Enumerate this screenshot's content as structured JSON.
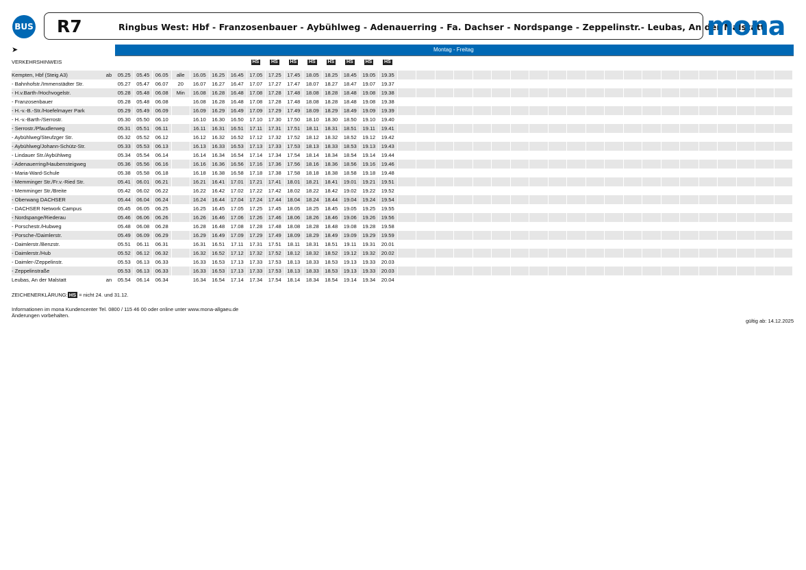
{
  "header": {
    "bus_badge": "BUS",
    "route": "R7",
    "title": "Ringbus West: Hbf - Franzosenbauer - Aybühlweg - Adenauerring - Fa. Dachser - Nordspange - Zeppelinstr.- Leubas, An der Malstatt",
    "logo": "mona",
    "brand_color": "#0068b4"
  },
  "direction_icon": "arrow-right-icon",
  "day_band": "Montag - Freitag",
  "traffic_note_label": "VERKEHRSHINWEIS",
  "hs_label": "HS",
  "hs_columns": [
    7,
    8,
    9,
    10,
    11,
    12,
    13,
    14
  ],
  "empty_columns": 21,
  "rows": [
    {
      "stop": "Kempten, Hbf (Steig A3)",
      "mark": "ab",
      "times": [
        "05.25",
        "05.45",
        "06.05",
        "alle",
        "16.05",
        "16.25",
        "16.45",
        "17.05",
        "17.25",
        "17.45",
        "18.05",
        "18.25",
        "18.45",
        "19.05",
        "19.35"
      ]
    },
    {
      "stop": "- Bahnhofstr./Immenstädter Str.",
      "mark": "",
      "times": [
        "05.27",
        "05.47",
        "06.07",
        "20",
        "16.07",
        "16.27",
        "16.47",
        "17.07",
        "17.27",
        "17.47",
        "18.07",
        "18.27",
        "18.47",
        "19.07",
        "19.37"
      ]
    },
    {
      "stop": "- H.v.Barth-/Hochvogelstr.",
      "mark": "",
      "times": [
        "05.28",
        "05.48",
        "06.08",
        "Min",
        "16.08",
        "16.28",
        "16.48",
        "17.08",
        "17.28",
        "17.48",
        "18.08",
        "18.28",
        "18.48",
        "19.08",
        "19.38"
      ]
    },
    {
      "stop": "- Franzosenbauer",
      "mark": "",
      "times": [
        "05.28",
        "05.48",
        "06.08",
        "",
        "16.08",
        "16.28",
        "16.48",
        "17.08",
        "17.28",
        "17.48",
        "18.08",
        "18.28",
        "18.48",
        "19.08",
        "19.38"
      ]
    },
    {
      "stop": "- H.-v.-B.-Str./Hoefelmayer Park",
      "mark": "",
      "times": [
        "05.29",
        "05.49",
        "06.09",
        "",
        "16.09",
        "16.29",
        "16.49",
        "17.09",
        "17.29",
        "17.49",
        "18.09",
        "18.29",
        "18.49",
        "19.09",
        "19.39"
      ]
    },
    {
      "stop": "- H.-v.-Barth-/Serrostr.",
      "mark": "",
      "times": [
        "05.30",
        "05.50",
        "06.10",
        "",
        "16.10",
        "16.30",
        "16.50",
        "17.10",
        "17.30",
        "17.50",
        "18.10",
        "18.30",
        "18.50",
        "19.10",
        "19.40"
      ]
    },
    {
      "stop": "- Serrostr./Pfaudlerweg",
      "mark": "",
      "times": [
        "05.31",
        "05.51",
        "06.11",
        "",
        "16.11",
        "16.31",
        "16.51",
        "17.11",
        "17.31",
        "17.51",
        "18.11",
        "18.31",
        "18.51",
        "19.11",
        "19.41"
      ]
    },
    {
      "stop": "- Aybühlweg/Steufzger Str.",
      "mark": "",
      "times": [
        "05.32",
        "05.52",
        "06.12",
        "",
        "16.12",
        "16.32",
        "16.52",
        "17.12",
        "17.32",
        "17.52",
        "18.12",
        "18.32",
        "18.52",
        "19.12",
        "19.42"
      ]
    },
    {
      "stop": "- Aybühlweg/Johann-Schütz-Str.",
      "mark": "",
      "times": [
        "05.33",
        "05.53",
        "06.13",
        "",
        "16.13",
        "16.33",
        "16.53",
        "17.13",
        "17.33",
        "17.53",
        "18.13",
        "18.33",
        "18.53",
        "19.13",
        "19.43"
      ]
    },
    {
      "stop": "- Lindauer Str./Aybühlweg",
      "mark": "",
      "times": [
        "05.34",
        "05.54",
        "06.14",
        "",
        "16.14",
        "16.34",
        "16.54",
        "17.14",
        "17.34",
        "17.54",
        "18.14",
        "18.34",
        "18.54",
        "19.14",
        "19.44"
      ]
    },
    {
      "stop": "- Adenauerring/Haubensteigweg",
      "mark": "",
      "times": [
        "05.36",
        "05.56",
        "06.16",
        "",
        "16.16",
        "16.36",
        "16.56",
        "17.16",
        "17.36",
        "17.56",
        "18.16",
        "18.36",
        "18.56",
        "19.16",
        "19.46"
      ]
    },
    {
      "stop": "- Maria-Ward-Schule",
      "mark": "",
      "times": [
        "05.38",
        "05.58",
        "06.18",
        "",
        "16.18",
        "16.38",
        "16.58",
        "17.18",
        "17.38",
        "17.58",
        "18.18",
        "18.38",
        "18.58",
        "19.18",
        "19.48"
      ]
    },
    {
      "stop": "- Memminger Str./Fr.v.-Ried Str.",
      "mark": "",
      "times": [
        "05.41",
        "06.01",
        "06.21",
        "",
        "16.21",
        "16.41",
        "17.01",
        "17.21",
        "17.41",
        "18.01",
        "18.21",
        "18.41",
        "19.01",
        "19.21",
        "19.51"
      ]
    },
    {
      "stop": "- Memminger Str./Breite",
      "mark": "",
      "times": [
        "05.42",
        "06.02",
        "06.22",
        "",
        "16.22",
        "16.42",
        "17.02",
        "17.22",
        "17.42",
        "18.02",
        "18.22",
        "18.42",
        "19.02",
        "19.22",
        "19.52"
      ]
    },
    {
      "stop": "- Oberwang DACHSER",
      "mark": "",
      "times": [
        "05.44",
        "06.04",
        "06.24",
        "",
        "16.24",
        "16.44",
        "17.04",
        "17.24",
        "17.44",
        "18.04",
        "18.24",
        "18.44",
        "19.04",
        "19.24",
        "19.54"
      ]
    },
    {
      "stop": "- DACHSER Network Campus",
      "mark": "",
      "times": [
        "05.45",
        "06.05",
        "06.25",
        "",
        "16.25",
        "16.45",
        "17.05",
        "17.25",
        "17.45",
        "18.05",
        "18.25",
        "18.45",
        "19.05",
        "19.25",
        "19.55"
      ]
    },
    {
      "stop": "- Nordspange/Riederau",
      "mark": "",
      "times": [
        "05.46",
        "06.06",
        "06.26",
        "",
        "16.26",
        "16.46",
        "17.06",
        "17.26",
        "17.46",
        "18.06",
        "18.26",
        "18.46",
        "19.06",
        "19.26",
        "19.56"
      ]
    },
    {
      "stop": "- Porschestr./Hubweg",
      "mark": "",
      "times": [
        "05.48",
        "06.08",
        "06.28",
        "",
        "16.28",
        "16.48",
        "17.08",
        "17.28",
        "17.48",
        "18.08",
        "18.28",
        "18.48",
        "19.08",
        "19.28",
        "19.58"
      ]
    },
    {
      "stop": "- Porsche-/Daimlerstr.",
      "mark": "",
      "times": [
        "05.49",
        "06.09",
        "06.29",
        "",
        "16.29",
        "16.49",
        "17.09",
        "17.29",
        "17.49",
        "18.09",
        "18.29",
        "18.49",
        "19.09",
        "19.29",
        "19.59"
      ]
    },
    {
      "stop": "- Daimlerstr./Benzstr.",
      "mark": "",
      "times": [
        "05.51",
        "06.11",
        "06.31",
        "",
        "16.31",
        "16.51",
        "17.11",
        "17.31",
        "17.51",
        "18.11",
        "18.31",
        "18.51",
        "19.11",
        "19.31",
        "20.01"
      ]
    },
    {
      "stop": "- Daimlerstr./Hub",
      "mark": "",
      "times": [
        "05.52",
        "06.12",
        "06.32",
        "",
        "16.32",
        "16.52",
        "17.12",
        "17.32",
        "17.52",
        "18.12",
        "18.32",
        "18.52",
        "19.12",
        "19.32",
        "20.02"
      ]
    },
    {
      "stop": "- Daimler-/Zeppelinstr.",
      "mark": "",
      "times": [
        "05.53",
        "06.13",
        "06.33",
        "",
        "16.33",
        "16.53",
        "17.13",
        "17.33",
        "17.53",
        "18.13",
        "18.33",
        "18.53",
        "19.13",
        "19.33",
        "20.03"
      ]
    },
    {
      "stop": "- Zeppelinstraße",
      "mark": "",
      "times": [
        "05.53",
        "06.13",
        "06.33",
        "",
        "16.33",
        "16.53",
        "17.13",
        "17.33",
        "17.53",
        "18.13",
        "18.33",
        "18.53",
        "19.13",
        "19.33",
        "20.03"
      ]
    },
    {
      "stop": "Leubas, An der Malstatt",
      "mark": "an",
      "times": [
        "05.54",
        "06.14",
        "06.34",
        "",
        "16.34",
        "16.54",
        "17.14",
        "17.34",
        "17.54",
        "18.14",
        "18.34",
        "18.54",
        "19.14",
        "19.34",
        "20.04"
      ]
    }
  ],
  "legend": {
    "label": "ZEICHENERKLÄRUNG:",
    "code": "HS",
    "text": "= nicht 24. und 31.12."
  },
  "info": {
    "line1": "Informationen im mona Kundencenter Tel. 0800 / 115 46 00 oder online unter www.mona-allgaeu.de",
    "line2": "Änderungen vorbehalten."
  },
  "valid": "gültig ab: 14.12.2025"
}
